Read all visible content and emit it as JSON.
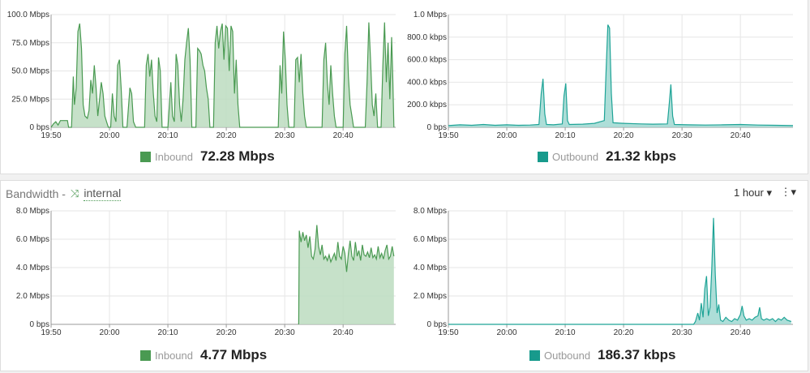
{
  "colors": {
    "inbound_line": "#4a9a52",
    "inbound_fill": "#bcdcbf",
    "outbound_line": "#1fa497",
    "outbound_fill": "#9fd8d1",
    "inbound_swatch": "#4a9a52",
    "outbound_swatch": "#179a8c",
    "accent": "#4f9a56"
  },
  "bottom_header": {
    "title": "Bandwidth -",
    "shuffle_icon": "⤨",
    "interface": "internal",
    "range_label": "1 hour ▾",
    "menu_icon": "⋮▾"
  },
  "legends": {
    "top_in": {
      "label": "Inbound",
      "value": "72.28 Mbps"
    },
    "top_out": {
      "label": "Outbound",
      "value": "21.32 kbps"
    },
    "bot_in": {
      "label": "Inbound",
      "value": "4.77 Mbps"
    },
    "bot_out": {
      "label": "Outbound",
      "value": "186.37 kbps"
    }
  },
  "chart_data": [
    {
      "type": "area",
      "series": [
        {
          "name": "Inbound"
        }
      ],
      "x_unit": "minutes",
      "x_ticks": [
        {
          "v": 0,
          "label": "19:50"
        },
        {
          "v": 10,
          "label": "20:00"
        },
        {
          "v": 20,
          "label": "20:10"
        },
        {
          "v": 30,
          "label": "20:20"
        },
        {
          "v": 40,
          "label": "20:30"
        },
        {
          "v": 50,
          "label": "20:40"
        }
      ],
      "xlim": [
        0,
        59
      ],
      "y_ticks": [
        {
          "v": 0,
          "label": "0 bps"
        },
        {
          "v": 25,
          "label": "25.0 Mbps"
        },
        {
          "v": 50,
          "label": "50.0 Mbps"
        },
        {
          "v": 75,
          "label": "75.0 Mbps"
        },
        {
          "v": 100,
          "label": "100.0 Mbps"
        }
      ],
      "ylim": [
        0,
        100
      ],
      "points": [
        [
          0,
          0
        ],
        [
          0.4,
          3
        ],
        [
          0.8,
          5
        ],
        [
          1.2,
          2
        ],
        [
          1.6,
          6
        ],
        [
          2.2,
          6
        ],
        [
          2.8,
          6
        ],
        [
          3,
          0
        ],
        [
          3.5,
          0
        ],
        [
          3.8,
          45
        ],
        [
          4,
          20
        ],
        [
          4.3,
          35
        ],
        [
          4.6,
          85
        ],
        [
          4.9,
          92
        ],
        [
          5.2,
          70
        ],
        [
          5.5,
          20
        ],
        [
          5.8,
          10
        ],
        [
          6.2,
          8
        ],
        [
          6.5,
          15
        ],
        [
          6.8,
          42
        ],
        [
          7.1,
          30
        ],
        [
          7.4,
          55
        ],
        [
          7.7,
          35
        ],
        [
          8,
          10
        ],
        [
          8.3,
          25
        ],
        [
          8.6,
          40
        ],
        [
          8.9,
          30
        ],
        [
          9.2,
          10
        ],
        [
          9.5,
          5
        ],
        [
          9.8,
          0
        ],
        [
          10.2,
          0
        ],
        [
          10.5,
          30
        ],
        [
          10.8,
          10
        ],
        [
          11.1,
          5
        ],
        [
          11.4,
          55
        ],
        [
          11.7,
          60
        ],
        [
          12,
          35
        ],
        [
          12.3,
          0
        ],
        [
          13,
          0
        ],
        [
          13.5,
          35
        ],
        [
          13.8,
          30
        ],
        [
          14.1,
          5
        ],
        [
          14.5,
          0
        ],
        [
          16,
          0
        ],
        [
          16.3,
          55
        ],
        [
          16.6,
          65
        ],
        [
          16.9,
          45
        ],
        [
          17.2,
          60
        ],
        [
          17.5,
          30
        ],
        [
          17.8,
          10
        ],
        [
          18.1,
          5
        ],
        [
          18.4,
          62
        ],
        [
          18.7,
          50
        ],
        [
          19,
          0
        ],
        [
          20,
          0
        ],
        [
          20.5,
          40
        ],
        [
          20.8,
          10
        ],
        [
          21.1,
          5
        ],
        [
          21.4,
          65
        ],
        [
          21.7,
          55
        ],
        [
          22,
          20
        ],
        [
          22.3,
          5
        ],
        [
          22.6,
          25
        ],
        [
          22.9,
          60
        ],
        [
          23.2,
          75
        ],
        [
          23.5,
          88
        ],
        [
          23.8,
          60
        ],
        [
          24.1,
          0
        ],
        [
          24.8,
          0
        ],
        [
          25.1,
          70
        ],
        [
          25.4,
          68
        ],
        [
          25.7,
          65
        ],
        [
          26,
          55
        ],
        [
          26.3,
          50
        ],
        [
          26.6,
          35
        ],
        [
          26.9,
          25
        ],
        [
          27.2,
          0
        ],
        [
          27.8,
          0
        ],
        [
          28.1,
          75
        ],
        [
          28.4,
          90
        ],
        [
          28.7,
          70
        ],
        [
          29,
          85
        ],
        [
          29.3,
          92
        ],
        [
          29.6,
          60
        ],
        [
          29.9,
          90
        ],
        [
          30.2,
          88
        ],
        [
          30.5,
          50
        ],
        [
          30.8,
          90
        ],
        [
          31.1,
          85
        ],
        [
          31.4,
          30
        ],
        [
          31.7,
          60
        ],
        [
          32,
          20
        ],
        [
          32.3,
          0
        ],
        [
          38.9,
          0
        ],
        [
          39.2,
          55
        ],
        [
          39.5,
          30
        ],
        [
          39.8,
          85
        ],
        [
          40.1,
          60
        ],
        [
          40.4,
          20
        ],
        [
          40.7,
          0
        ],
        [
          41.6,
          0
        ],
        [
          41.9,
          60
        ],
        [
          42.2,
          62
        ],
        [
          42.5,
          40
        ],
        [
          42.8,
          65
        ],
        [
          43.1,
          30
        ],
        [
          43.4,
          10
        ],
        [
          43.7,
          0
        ],
        [
          46.4,
          0
        ],
        [
          46.7,
          60
        ],
        [
          47,
          75
        ],
        [
          47.3,
          40
        ],
        [
          47.6,
          20
        ],
        [
          47.9,
          55
        ],
        [
          48.2,
          30
        ],
        [
          48.5,
          10
        ],
        [
          48.8,
          0
        ],
        [
          50,
          0
        ],
        [
          50.3,
          65
        ],
        [
          50.6,
          90
        ],
        [
          50.9,
          45
        ],
        [
          51.2,
          20
        ],
        [
          51.5,
          10
        ],
        [
          51.8,
          0
        ],
        [
          53.8,
          0
        ],
        [
          54.1,
          40
        ],
        [
          54.4,
          93
        ],
        [
          54.7,
          60
        ],
        [
          55,
          20
        ],
        [
          55.3,
          10
        ],
        [
          55.6,
          30
        ],
        [
          55.9,
          0
        ],
        [
          56.5,
          0
        ],
        [
          56.8,
          55
        ],
        [
          57.1,
          93
        ],
        [
          57.4,
          40
        ],
        [
          57.7,
          75
        ],
        [
          58,
          25
        ],
        [
          58.3,
          80
        ],
        [
          58.5,
          45
        ],
        [
          58.7,
          0
        ]
      ]
    },
    {
      "type": "area",
      "series": [
        {
          "name": "Outbound"
        }
      ],
      "x_unit": "minutes",
      "x_ticks": [
        {
          "v": 0,
          "label": "19:50"
        },
        {
          "v": 10,
          "label": "20:00"
        },
        {
          "v": 20,
          "label": "20:10"
        },
        {
          "v": 30,
          "label": "20:20"
        },
        {
          "v": 40,
          "label": "20:30"
        },
        {
          "v": 50,
          "label": "20:40"
        }
      ],
      "xlim": [
        0,
        59
      ],
      "y_ticks": [
        {
          "v": 0,
          "label": "0 bps"
        },
        {
          "v": 200,
          "label": "200.0 kbps"
        },
        {
          "v": 400,
          "label": "400.0 kbps"
        },
        {
          "v": 600,
          "label": "600.0 kbps"
        },
        {
          "v": 800,
          "label": "800.0 kbps"
        },
        {
          "v": 1000,
          "label": "1.0 Mbps"
        }
      ],
      "ylim": [
        0,
        1000
      ],
      "points": [
        [
          0,
          15
        ],
        [
          2,
          22
        ],
        [
          4,
          18
        ],
        [
          6,
          25
        ],
        [
          8,
          18
        ],
        [
          10,
          22
        ],
        [
          12,
          18
        ],
        [
          14,
          20
        ],
        [
          15.5,
          25
        ],
        [
          15.9,
          300
        ],
        [
          16.2,
          430
        ],
        [
          16.5,
          120
        ],
        [
          16.8,
          25
        ],
        [
          18,
          22
        ],
        [
          19.5,
          30
        ],
        [
          19.8,
          280
        ],
        [
          20.1,
          390
        ],
        [
          20.4,
          60
        ],
        [
          20.7,
          25
        ],
        [
          23,
          28
        ],
        [
          25,
          35
        ],
        [
          26.7,
          60
        ],
        [
          27,
          500
        ],
        [
          27.3,
          910
        ],
        [
          27.6,
          880
        ],
        [
          27.9,
          300
        ],
        [
          28.2,
          40
        ],
        [
          30,
          35
        ],
        [
          33,
          30
        ],
        [
          35,
          28
        ],
        [
          37.5,
          30
        ],
        [
          37.8,
          200
        ],
        [
          38.1,
          380
        ],
        [
          38.4,
          100
        ],
        [
          38.7,
          25
        ],
        [
          41,
          22
        ],
        [
          44,
          20
        ],
        [
          47,
          22
        ],
        [
          50,
          25
        ],
        [
          53,
          20
        ],
        [
          56,
          18
        ],
        [
          59,
          15
        ]
      ]
    },
    {
      "type": "area",
      "series": [
        {
          "name": "Inbound"
        }
      ],
      "x_unit": "minutes",
      "x_ticks": [
        {
          "v": 0,
          "label": "19:50"
        },
        {
          "v": 10,
          "label": "20:00"
        },
        {
          "v": 20,
          "label": "20:10"
        },
        {
          "v": 30,
          "label": "20:20"
        },
        {
          "v": 40,
          "label": "20:30"
        },
        {
          "v": 50,
          "label": "20:40"
        }
      ],
      "xlim": [
        0,
        59
      ],
      "y_ticks": [
        {
          "v": 0,
          "label": "0 bps"
        },
        {
          "v": 2,
          "label": "2.0 Mbps"
        },
        {
          "v": 4,
          "label": "4.0 Mbps"
        },
        {
          "v": 6,
          "label": "6.0 Mbps"
        },
        {
          "v": 8,
          "label": "8.0 Mbps"
        }
      ],
      "ylim": [
        0,
        8
      ],
      "points": [
        [
          42.4,
          0
        ],
        [
          42.5,
          6.6
        ],
        [
          42.8,
          5.8
        ],
        [
          43.1,
          6.5
        ],
        [
          43.4,
          5.9
        ],
        [
          43.7,
          6.3
        ],
        [
          44,
          5.4
        ],
        [
          44.3,
          6.2
        ],
        [
          44.6,
          4.8
        ],
        [
          44.9,
          4.6
        ],
        [
          45.2,
          5.3
        ],
        [
          45.5,
          7.0
        ],
        [
          45.8,
          5.5
        ],
        [
          46.1,
          4.9
        ],
        [
          46.4,
          5.6
        ],
        [
          46.7,
          4.6
        ],
        [
          47,
          4.8
        ],
        [
          47.3,
          4.5
        ],
        [
          47.6,
          4.9
        ],
        [
          47.9,
          4.4
        ],
        [
          48.2,
          4.7
        ],
        [
          48.5,
          5.0
        ],
        [
          48.8,
          4.5
        ],
        [
          49.1,
          5.8
        ],
        [
          49.4,
          4.8
        ],
        [
          49.7,
          4.6
        ],
        [
          50,
          5.5
        ],
        [
          50.3,
          5.0
        ],
        [
          50.6,
          3.7
        ],
        [
          50.9,
          5.0
        ],
        [
          51.2,
          5.9
        ],
        [
          51.5,
          4.8
        ],
        [
          51.8,
          4.5
        ],
        [
          52.1,
          5.8
        ],
        [
          52.4,
          4.8
        ],
        [
          52.7,
          5.2
        ],
        [
          53,
          4.5
        ],
        [
          53.3,
          5.6
        ],
        [
          53.6,
          4.9
        ],
        [
          53.9,
          4.8
        ],
        [
          54.2,
          5.1
        ],
        [
          54.5,
          4.7
        ],
        [
          54.8,
          5.4
        ],
        [
          55.1,
          4.7
        ],
        [
          55.4,
          4.9
        ],
        [
          55.7,
          4.6
        ],
        [
          56,
          5.5
        ],
        [
          56.3,
          4.7
        ],
        [
          56.6,
          5.0
        ],
        [
          56.9,
          4.6
        ],
        [
          57.2,
          5.2
        ],
        [
          57.5,
          5.6
        ],
        [
          57.8,
          4.6
        ],
        [
          58.1,
          4.8
        ],
        [
          58.4,
          5.5
        ],
        [
          58.7,
          4.8
        ]
      ]
    },
    {
      "type": "area",
      "series": [
        {
          "name": "Outbound"
        }
      ],
      "x_unit": "minutes",
      "x_ticks": [
        {
          "v": 0,
          "label": "19:50"
        },
        {
          "v": 10,
          "label": "20:00"
        },
        {
          "v": 20,
          "label": "20:10"
        },
        {
          "v": 30,
          "label": "20:20"
        },
        {
          "v": 40,
          "label": "20:30"
        },
        {
          "v": 50,
          "label": "20:40"
        }
      ],
      "xlim": [
        0,
        59
      ],
      "y_ticks": [
        {
          "v": 0,
          "label": "0 bps"
        },
        {
          "v": 2,
          "label": "2.0 Mbps"
        },
        {
          "v": 4,
          "label": "4.0 Mbps"
        },
        {
          "v": 6,
          "label": "6.0 Mbps"
        },
        {
          "v": 8,
          "label": "8.0 Mbps"
        }
      ],
      "ylim": [
        0,
        8
      ],
      "points": [
        [
          0,
          0
        ],
        [
          42,
          0
        ],
        [
          42.3,
          0.2
        ],
        [
          42.7,
          0.8
        ],
        [
          43,
          0.3
        ],
        [
          43.3,
          1.5
        ],
        [
          43.6,
          0.5
        ],
        [
          43.9,
          2.5
        ],
        [
          44.2,
          3.4
        ],
        [
          44.5,
          0.6
        ],
        [
          44.8,
          1.2
        ],
        [
          45.1,
          4.0
        ],
        [
          45.4,
          7.5
        ],
        [
          45.7,
          3.5
        ],
        [
          46,
          0.8
        ],
        [
          46.3,
          1.4
        ],
        [
          46.6,
          0.3
        ],
        [
          47,
          0.2
        ],
        [
          47.5,
          0.5
        ],
        [
          48,
          0.3
        ],
        [
          48.5,
          0.2
        ],
        [
          49,
          0.4
        ],
        [
          49.5,
          0.3
        ],
        [
          50,
          0.7
        ],
        [
          50.3,
          1.3
        ],
        [
          50.6,
          0.6
        ],
        [
          51,
          0.3
        ],
        [
          51.5,
          0.4
        ],
        [
          52,
          0.3
        ],
        [
          52.5,
          0.5
        ],
        [
          53,
          0.6
        ],
        [
          53.3,
          1.2
        ],
        [
          53.6,
          0.4
        ],
        [
          54,
          0.3
        ],
        [
          54.5,
          0.4
        ],
        [
          55,
          0.3
        ],
        [
          55.5,
          0.4
        ],
        [
          56,
          0.2
        ],
        [
          56.5,
          0.4
        ],
        [
          57,
          0.3
        ],
        [
          57.5,
          0.5
        ],
        [
          58,
          0.3
        ],
        [
          58.7,
          0.2
        ]
      ]
    }
  ]
}
